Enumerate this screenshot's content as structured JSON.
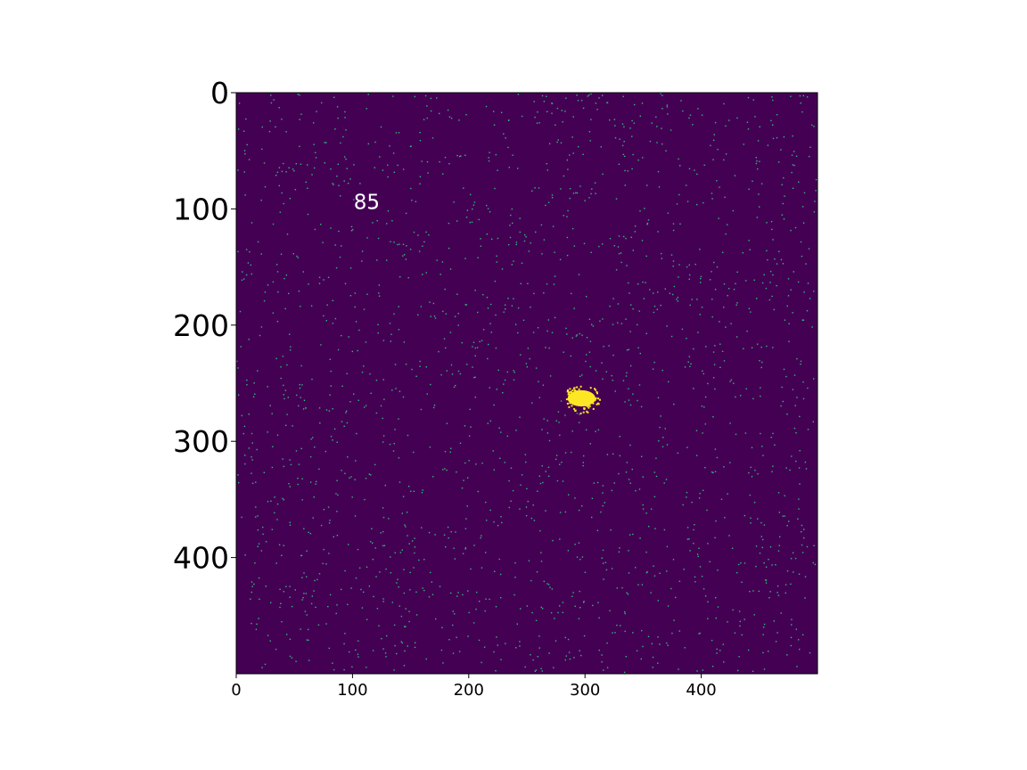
{
  "chart_data": {
    "type": "heatmap",
    "title": "",
    "xlabel": "",
    "ylabel": "",
    "xlim": [
      0,
      500
    ],
    "ylim": [
      500,
      0
    ],
    "x_ticks": [
      {
        "value": 0,
        "label": "0"
      },
      {
        "value": 100,
        "label": "100"
      },
      {
        "value": 200,
        "label": "200"
      },
      {
        "value": 300,
        "label": "300"
      },
      {
        "value": 400,
        "label": "400"
      }
    ],
    "y_ticks": [
      {
        "value": 0,
        "label": "0"
      },
      {
        "value": 100,
        "label": "100"
      },
      {
        "value": 200,
        "label": "200"
      },
      {
        "value": 300,
        "label": "300"
      },
      {
        "value": 400,
        "label": "400"
      }
    ],
    "colormap": "viridis",
    "colors": {
      "background": "#440154",
      "speckle": "#35b779",
      "cluster": "#fde725",
      "annotation": "#ffffff"
    },
    "cluster": {
      "x_center": 297,
      "y_center": 263,
      "x_radius": 12,
      "y_radius": 7
    },
    "annotation": {
      "text": "85",
      "x": 101,
      "y": 94
    },
    "grid": false,
    "legend": "none"
  }
}
